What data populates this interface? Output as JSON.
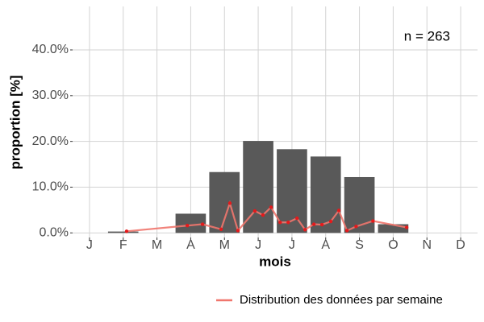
{
  "chart_data": {
    "type": "bar",
    "categories": [
      "J",
      "F",
      "M",
      "A",
      "M",
      "J",
      "J",
      "A",
      "S",
      "O",
      "N",
      "D"
    ],
    "values": [
      0,
      0.3,
      0,
      4.2,
      13.3,
      20.1,
      18.3,
      16.7,
      12.2,
      1.9,
      0,
      0
    ],
    "color": "#595959",
    "x_label": "mois",
    "y_label": "proportion [%]",
    "annotation": "n = 263",
    "xlim": [
      0.5,
      12.5
    ],
    "ylim": [
      -1,
      49.5
    ],
    "yticks": [
      {
        "value": 0,
        "label": "0.0%"
      },
      {
        "value": 10,
        "label": "10.0%"
      },
      {
        "value": 20,
        "label": "20.0%"
      },
      {
        "value": 30,
        "label": "30.0%"
      },
      {
        "value": 40,
        "label": "40.0%"
      }
    ],
    "grid": true,
    "legend": "bottom-right",
    "series": [
      {
        "name": "Distribution des données par semaine",
        "type": "line",
        "color": "#f0766d",
        "point_color": "#e41a1c",
        "x": [
          2.1,
          3.9,
          4.35,
          4.9,
          5.16,
          5.4,
          5.9,
          6.14,
          6.38,
          6.65,
          6.89,
          7.15,
          7.39,
          7.65,
          7.89,
          8.15,
          8.39,
          8.63,
          8.9,
          9.4,
          10.4
        ],
        "values": [
          0.35,
          1.6,
          1.9,
          0.8,
          6.5,
          0.5,
          4.8,
          3.9,
          5.6,
          2.3,
          2.3,
          3.2,
          0.7,
          1.9,
          1.8,
          2.5,
          4.9,
          0.5,
          1.4,
          2.6,
          1.2
        ]
      }
    ]
  }
}
